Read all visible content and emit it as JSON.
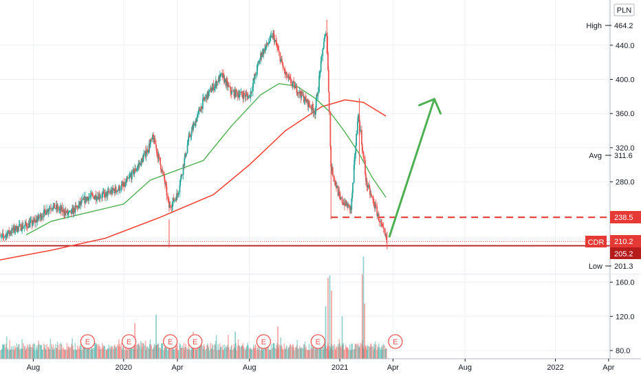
{
  "chart_data": {
    "type": "candlestick",
    "symbol": "CDR",
    "currency": "PLN",
    "colors": {
      "up": "#26a69a",
      "down": "#ef5350",
      "ma_fast": "#4caf50",
      "ma_slow": "#f44336",
      "arrow": "#4caf50",
      "level": "#e53935",
      "support": "#b71c1c",
      "label_bg": "#e53935",
      "label_dark": "#b71c1c",
      "grid": "#eef0f3"
    },
    "x_axis": {
      "ticks": [
        {
          "label": "Aug",
          "date": "2019-08"
        },
        {
          "label": "2020",
          "date": "2020-01"
        },
        {
          "label": "Apr",
          "date": "2020-04"
        },
        {
          "label": "Aug",
          "date": "2020-08"
        },
        {
          "label": "2021",
          "date": "2021-01"
        },
        {
          "label": "Apr",
          "date": "2021-04"
        },
        {
          "label": "Aug",
          "date": "2021-08"
        },
        {
          "label": "2022",
          "date": "2022-01"
        },
        {
          "label": "Apr",
          "date": "2022-04"
        }
      ],
      "range": [
        "2019-06",
        "2022-05"
      ]
    },
    "price_axis": {
      "ticks": [
        440.0,
        400.0,
        360.0,
        320.0,
        280.0
      ],
      "tick_labels": [
        "440.0",
        "400.0",
        "360.0",
        "320.0",
        "280.0"
      ],
      "range": [
        190,
        475
      ]
    },
    "volume_axis": {
      "ticks": [
        160.0,
        120.0,
        80.0
      ],
      "tick_labels": [
        "160.0",
        "120.0",
        "80.0"
      ],
      "range": [
        72,
        195
      ]
    },
    "labels": {
      "currency": "PLN",
      "high_text": "High",
      "high_value": "464.2",
      "avg_text": "Avg",
      "avg_value": "311.6",
      "level_value": "238.5",
      "symbol_text": "CDR",
      "last_value": "210.2",
      "support_value": "205.2",
      "low_text": "Low",
      "low_value": "201.3"
    },
    "levels": {
      "resistance": 238.5,
      "support": 205.2,
      "last": 210.2,
      "high": 464.2,
      "low": 201.3,
      "avg": 311.6
    },
    "price_path": [
      [
        "2019-06-01",
        212
      ],
      [
        "2019-07-01",
        225
      ],
      [
        "2019-08-01",
        232
      ],
      [
        "2019-09-01",
        252
      ],
      [
        "2019-10-01",
        242
      ],
      [
        "2019-11-01",
        262
      ],
      [
        "2019-12-01",
        265
      ],
      [
        "2020-01-01",
        275
      ],
      [
        "2020-02-01",
        305
      ],
      [
        "2020-02-20",
        332
      ],
      [
        "2020-03-10",
        282
      ],
      [
        "2020-03-18",
        250
      ],
      [
        "2020-04-01",
        265
      ],
      [
        "2020-04-20",
        330
      ],
      [
        "2020-05-15",
        375
      ],
      [
        "2020-06-15",
        405
      ],
      [
        "2020-07-01",
        385
      ],
      [
        "2020-08-01",
        380
      ],
      [
        "2020-08-20",
        428
      ],
      [
        "2020-09-10",
        452
      ],
      [
        "2020-10-01",
        405
      ],
      [
        "2020-11-01",
        378
      ],
      [
        "2020-11-20",
        362
      ],
      [
        "2020-12-05",
        445
      ],
      [
        "2020-12-10",
        455
      ],
      [
        "2020-12-17",
        298
      ],
      [
        "2021-01-01",
        260
      ],
      [
        "2021-01-20",
        248
      ],
      [
        "2021-02-01",
        362
      ],
      [
        "2021-02-15",
        278
      ],
      [
        "2021-03-01",
        252
      ],
      [
        "2021-03-15",
        223
      ],
      [
        "2021-03-22",
        210
      ]
    ],
    "ma_fast": [
      [
        "2019-07-20",
        218
      ],
      [
        "2019-09-01",
        234
      ],
      [
        "2019-11-01",
        244
      ],
      [
        "2020-01-01",
        254
      ],
      [
        "2020-02-15",
        282
      ],
      [
        "2020-03-25",
        292
      ],
      [
        "2020-05-15",
        305
      ],
      [
        "2020-07-01",
        345
      ],
      [
        "2020-08-20",
        382
      ],
      [
        "2020-09-20",
        395
      ],
      [
        "2020-10-20",
        392
      ],
      [
        "2020-11-20",
        378
      ],
      [
        "2020-12-15",
        362
      ],
      [
        "2021-01-10",
        338
      ],
      [
        "2021-02-01",
        315
      ],
      [
        "2021-02-25",
        285
      ],
      [
        "2021-03-20",
        262
      ]
    ],
    "ma_slow": [
      [
        "2019-06-01",
        188
      ],
      [
        "2019-09-01",
        200
      ],
      [
        "2019-12-01",
        214
      ],
      [
        "2020-03-01",
        238
      ],
      [
        "2020-06-01",
        265
      ],
      [
        "2020-08-01",
        300
      ],
      [
        "2020-10-01",
        340
      ],
      [
        "2020-12-01",
        368
      ],
      [
        "2021-01-10",
        376
      ],
      [
        "2021-02-10",
        373
      ],
      [
        "2021-03-20",
        357
      ]
    ],
    "arrow": {
      "from": [
        "2021-03-26",
        216
      ],
      "to": [
        "2021-06-10",
        377
      ]
    },
    "volume_spikes": [
      [
        "2020-01-20",
        112
      ],
      [
        "2020-02-25",
        122
      ],
      [
        "2020-04-28",
        102
      ],
      [
        "2020-07-08",
        102
      ],
      [
        "2020-09-18",
        108
      ],
      [
        "2020-12-08",
        132
      ],
      [
        "2020-12-12",
        165
      ],
      [
        "2020-12-15",
        168
      ],
      [
        "2020-12-18",
        150
      ],
      [
        "2021-01-05",
        120
      ],
      [
        "2021-02-08",
        170
      ],
      [
        "2021-02-10",
        190
      ],
      [
        "2021-02-12",
        135
      ]
    ],
    "earnings_markers": [
      {
        "label": "E",
        "date": "2019-11-01"
      },
      {
        "label": "E",
        "date": "2020-01-10"
      },
      {
        "label": "E",
        "date": "2020-03-20"
      },
      {
        "label": "E",
        "date": "2020-05-01"
      },
      {
        "label": "E",
        "date": "2020-08-25"
      },
      {
        "label": "E",
        "date": "2020-11-25"
      },
      {
        "label": "E",
        "date": "2021-04-05"
      }
    ]
  }
}
